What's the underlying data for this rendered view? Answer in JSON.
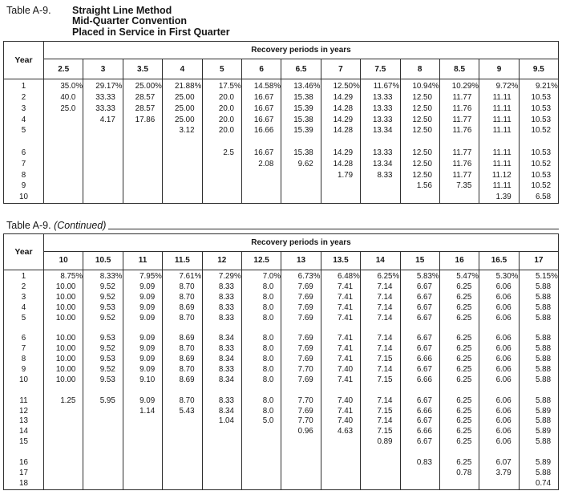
{
  "tables": [
    {
      "label": "Table A-9.",
      "title_lines": [
        "Straight Line Method",
        "Mid-Quarter Convention",
        "Placed in Service in First Quarter"
      ],
      "span_header": "Recovery periods in years",
      "year_header": "Year",
      "columns": [
        "2.5",
        "3",
        "3.5",
        "4",
        "5",
        "6",
        "6.5",
        "7",
        "7.5",
        "8",
        "8.5",
        "9",
        "9.5"
      ],
      "rows": [
        {
          "year": "1",
          "values": [
            "35.0%",
            "29.17%",
            "25.00%",
            "21.88%",
            "17.5%",
            "14.58%",
            "13.46%",
            "12.50%",
            "11.67%",
            "10.94%",
            "10.29%",
            "9.72%",
            "9.21%"
          ]
        },
        {
          "year": "2",
          "values": [
            "40.0",
            "33.33",
            "28.57",
            "25.00",
            "20.0",
            "16.67",
            "15.38",
            "14.29",
            "13.33",
            "12.50",
            "11.77",
            "11.11",
            "10.53"
          ]
        },
        {
          "year": "3",
          "values": [
            "25.0",
            "33.33",
            "28.57",
            "25.00",
            "20.0",
            "16.67",
            "15.39",
            "14.28",
            "13.33",
            "12.50",
            "11.76",
            "11.11",
            "10.53"
          ]
        },
        {
          "year": "4",
          "values": [
            "",
            "4.17",
            "17.86",
            "25.00",
            "20.0",
            "16.67",
            "15.38",
            "14.29",
            "13.33",
            "12.50",
            "11.77",
            "11.11",
            "10.53"
          ]
        },
        {
          "year": "5",
          "values": [
            "",
            "",
            "",
            "3.12",
            "20.0",
            "16.66",
            "15.39",
            "14.28",
            "13.34",
            "12.50",
            "11.76",
            "11.11",
            "10.52"
          ]
        },
        {
          "gap": true
        },
        {
          "year": "6",
          "values": [
            "",
            "",
            "",
            "",
            "2.5",
            "16.67",
            "15.38",
            "14.29",
            "13.33",
            "12.50",
            "11.77",
            "11.11",
            "10.53"
          ]
        },
        {
          "year": "7",
          "values": [
            "",
            "",
            "",
            "",
            "",
            "2.08",
            "9.62",
            "14.28",
            "13.34",
            "12.50",
            "11.76",
            "11.11",
            "10.52"
          ]
        },
        {
          "year": "8",
          "values": [
            "",
            "",
            "",
            "",
            "",
            "",
            "",
            "1.79",
            "8.33",
            "12.50",
            "11.77",
            "11.12",
            "10.53"
          ]
        },
        {
          "year": "9",
          "values": [
            "",
            "",
            "",
            "",
            "",
            "",
            "",
            "",
            "",
            "1.56",
            "7.35",
            "11.11",
            "10.52"
          ]
        },
        {
          "year": "10",
          "values": [
            "",
            "",
            "",
            "",
            "",
            "",
            "",
            "",
            "",
            "",
            "",
            "1.39",
            "6.58"
          ]
        }
      ]
    },
    {
      "label": "Table A-9.",
      "continued": "(Continued)",
      "span_header": "Recovery periods in years",
      "year_header": "Year",
      "columns": [
        "10",
        "10.5",
        "11",
        "11.5",
        "12",
        "12.5",
        "13",
        "13.5",
        "14",
        "15",
        "16",
        "16.5",
        "17"
      ],
      "rows": [
        {
          "year": "1",
          "values": [
            "8.75%",
            "8.33%",
            "7.95%",
            "7.61%",
            "7.29%",
            "7.0%",
            "6.73%",
            "6.48%",
            "6.25%",
            "5.83%",
            "5.47%",
            "5.30%",
            "5.15%"
          ]
        },
        {
          "year": "2",
          "values": [
            "10.00",
            "9.52",
            "9.09",
            "8.70",
            "8.33",
            "8.0",
            "7.69",
            "7.41",
            "7.14",
            "6.67",
            "6.25",
            "6.06",
            "5.88"
          ]
        },
        {
          "year": "3",
          "values": [
            "10.00",
            "9.52",
            "9.09",
            "8.70",
            "8.33",
            "8.0",
            "7.69",
            "7.41",
            "7.14",
            "6.67",
            "6.25",
            "6.06",
            "5.88"
          ]
        },
        {
          "year": "4",
          "values": [
            "10.00",
            "9.53",
            "9.09",
            "8.69",
            "8.33",
            "8.0",
            "7.69",
            "7.41",
            "7.14",
            "6.67",
            "6.25",
            "6.06",
            "5.88"
          ]
        },
        {
          "year": "5",
          "values": [
            "10.00",
            "9.52",
            "9.09",
            "8.70",
            "8.33",
            "8.0",
            "7.69",
            "7.41",
            "7.14",
            "6.67",
            "6.25",
            "6.06",
            "5.88"
          ]
        },
        {
          "gap": true
        },
        {
          "year": "6",
          "values": [
            "10.00",
            "9.53",
            "9.09",
            "8.69",
            "8.34",
            "8.0",
            "7.69",
            "7.41",
            "7.14",
            "6.67",
            "6.25",
            "6.06",
            "5.88"
          ]
        },
        {
          "year": "7",
          "values": [
            "10.00",
            "9.52",
            "9.09",
            "8.70",
            "8.33",
            "8.0",
            "7.69",
            "7.41",
            "7.14",
            "6.67",
            "6.25",
            "6.06",
            "5.88"
          ]
        },
        {
          "year": "8",
          "values": [
            "10.00",
            "9.53",
            "9.09",
            "8.69",
            "8.34",
            "8.0",
            "7.69",
            "7.41",
            "7.15",
            "6.66",
            "6.25",
            "6.06",
            "5.88"
          ]
        },
        {
          "year": "9",
          "values": [
            "10.00",
            "9.52",
            "9.09",
            "8.70",
            "8.33",
            "8.0",
            "7.70",
            "7.40",
            "7.14",
            "6.67",
            "6.25",
            "6.06",
            "5.88"
          ]
        },
        {
          "year": "10",
          "values": [
            "10.00",
            "9.53",
            "9.10",
            "8.69",
            "8.34",
            "8.0",
            "7.69",
            "7.41",
            "7.15",
            "6.66",
            "6.25",
            "6.06",
            "5.88"
          ]
        },
        {
          "gap": true
        },
        {
          "year": "11",
          "values": [
            "1.25",
            "5.95",
            "9.09",
            "8.70",
            "8.33",
            "8.0",
            "7.70",
            "7.40",
            "7.14",
            "6.67",
            "6.25",
            "6.06",
            "5.88"
          ]
        },
        {
          "year": "12",
          "values": [
            "",
            "",
            "1.14",
            "5.43",
            "8.34",
            "8.0",
            "7.69",
            "7.41",
            "7.15",
            "6.66",
            "6.25",
            "6.06",
            "5.89"
          ]
        },
        {
          "year": "13",
          "values": [
            "",
            "",
            "",
            "",
            "1.04",
            "5.0",
            "7.70",
            "7.40",
            "7.14",
            "6.67",
            "6.25",
            "6.06",
            "5.88"
          ]
        },
        {
          "year": "14",
          "values": [
            "",
            "",
            "",
            "",
            "",
            "",
            "0.96",
            "4.63",
            "7.15",
            "6.66",
            "6.25",
            "6.06",
            "5.89"
          ]
        },
        {
          "year": "15",
          "values": [
            "",
            "",
            "",
            "",
            "",
            "",
            "",
            "",
            "0.89",
            "6.67",
            "6.25",
            "6.06",
            "5.88"
          ]
        },
        {
          "gap": true
        },
        {
          "year": "16",
          "values": [
            "",
            "",
            "",
            "",
            "",
            "",
            "",
            "",
            "",
            "0.83",
            "6.25",
            "6.07",
            "5.89"
          ]
        },
        {
          "year": "17",
          "values": [
            "",
            "",
            "",
            "",
            "",
            "",
            "",
            "",
            "",
            "",
            "0.78",
            "3.79",
            "5.88"
          ]
        },
        {
          "year": "18",
          "values": [
            "",
            "",
            "",
            "",
            "",
            "",
            "",
            "",
            "",
            "",
            "",
            "",
            "0.74"
          ]
        }
      ]
    }
  ]
}
